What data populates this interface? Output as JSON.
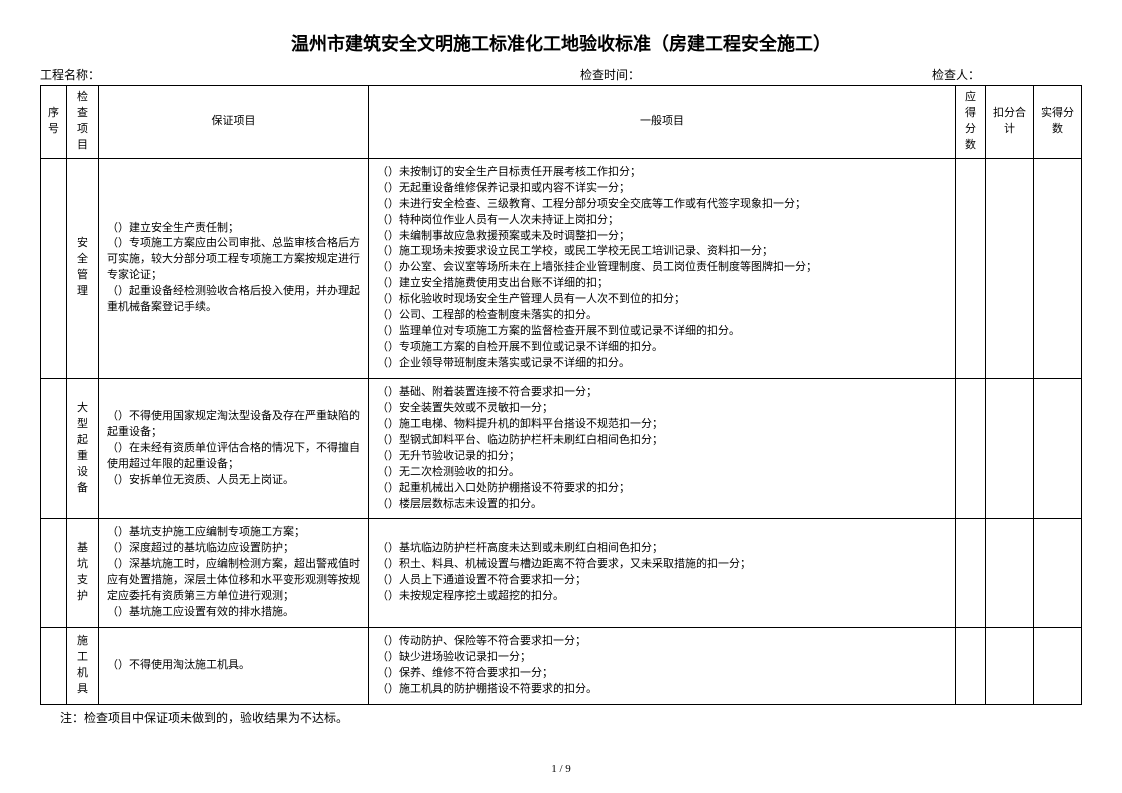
{
  "title": "温州市建筑安全文明施工标准化工地验收标准（房建工程安全施工）",
  "header": {
    "project_label": "工程名称：",
    "time_label": "检查时间：",
    "person_label": "检查人："
  },
  "columns": {
    "seq": "序号",
    "cat": "检查项目",
    "guarantee": "保证项目",
    "general": "一般项目",
    "score": "应得分数",
    "deduct": "扣分合计",
    "actual": "实得分数"
  },
  "rows": [
    {
      "cat": "安全管理",
      "guarantee": "（）建立安全生产责任制；\n（）专项施工方案应由公司审批、总监审核合格后方可实施，较大分部分项工程专项施工方案按规定进行专家论证；\n（）起重设备经检测验收合格后投入使用，并办理起重机械备案登记手续。",
      "general": "（）未按制订的安全生产目标责任开展考核工作扣分；\n（）无起重设备维修保养记录扣或内容不详实一分；\n（）未进行安全检查、三级教育、工程分部分项安全交底等工作或有代签字现象扣一分；\n（）特种岗位作业人员有一人次未持证上岗扣分；\n（）未编制事故应急救援预案或未及时调整扣一分；\n（）施工现场未按要求设立民工学校，或民工学校无民工培训记录、资料扣一分；\n（）办公室、会议室等场所未在上墙张挂企业管理制度、员工岗位责任制度等图牌扣一分；\n（）建立安全措施费使用支出台账不详细的扣；\n（）标化验收时现场安全生产管理人员有一人次不到位的扣分；\n（）公司、工程部的检查制度未落实的扣分。\n（）监理单位对专项施工方案的监督检查开展不到位或记录不详细的扣分。\n（）专项施工方案的自检开展不到位或记录不详细的扣分。\n（）企业领导带班制度未落实或记录不详细的扣分。"
    },
    {
      "cat": "大型起重设备",
      "guarantee": "（）不得使用国家规定淘汰型设备及存在严重缺陷的起重设备；\n（）在未经有资质单位评估合格的情况下，不得擅自使用超过年限的起重设备；\n（）安拆单位无资质、人员无上岗证。",
      "general": "（）基础、附着装置连接不符合要求扣一分；\n（）安全装置失效或不灵敏扣一分；\n（）施工电梯、物料提升机的卸料平台搭设不规范扣一分；\n（）型钢式卸料平台、临边防护栏杆未刷红白相间色扣分；\n（）无升节验收记录的扣分；\n（）无二次检测验收的扣分。\n（）起重机械出入口处防护棚搭设不符要求的扣分；\n（）楼层层数标志未设置的扣分。"
    },
    {
      "cat": "基坑支护",
      "guarantee": "（）基坑支护施工应编制专项施工方案；\n（）深度超过的基坑临边应设置防护；\n（）深基坑施工时，应编制检测方案，超出警戒值时应有处置措施，深层土体位移和水平变形观测等按规定应委托有资质第三方单位进行观测；\n（）基坑施工应设置有效的排水措施。",
      "general": "（）基坑临边防护栏杆高度未达到或未刷红白相间色扣分；\n（）积土、料具、机械设置与槽边距离不符合要求，又未采取措施的扣一分；\n（）人员上下通道设置不符合要求扣一分；\n（）未按规定程序挖土或超挖的扣分。"
    },
    {
      "cat": "施工机具",
      "guarantee": "（）不得使用淘汰施工机具。",
      "general": "（）传动防护、保险等不符合要求扣一分；\n（）缺少进场验收记录扣一分；\n（）保养、维修不符合要求扣一分；\n（）施工机具的防护棚搭设不符要求的扣分。"
    }
  ],
  "footnote": "注：检查项目中保证项未做到的，验收结果为不达标。",
  "pagenum": "1 / 9"
}
